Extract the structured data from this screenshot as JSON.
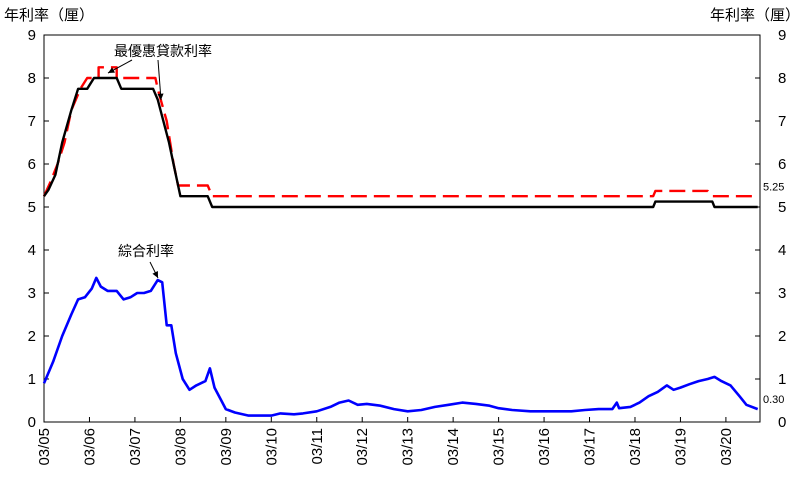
{
  "chart_data": {
    "type": "line",
    "y_axis_left_title": "年利率（厘）",
    "y_axis_right_title": "年利率（厘）",
    "ylim": [
      0,
      9
    ],
    "y_ticks": [
      "0",
      "1",
      "2",
      "3",
      "4",
      "5",
      "6",
      "7",
      "8",
      "9"
    ],
    "x_ticks": [
      "03/05",
      "03/06",
      "03/07",
      "03/08",
      "03/09",
      "03/10",
      "03/11",
      "03/12",
      "03/13",
      "03/14",
      "03/15",
      "03/16",
      "03/17",
      "03/18",
      "03/19",
      "03/20"
    ],
    "annotations": [
      {
        "text": "最優惠貸款利率",
        "series": "black"
      },
      {
        "text": "綜合利率",
        "series": "blue"
      }
    ],
    "end_labels": [
      {
        "text": "5.25",
        "series": "red"
      },
      {
        "text": "0.30",
        "series": "blue"
      }
    ],
    "series": [
      {
        "key": "red",
        "color": "#ff0000",
        "dash": true,
        "points": [
          [
            2005.0,
            5.25
          ],
          [
            2005.15,
            5.6
          ],
          [
            2005.3,
            6.0
          ],
          [
            2005.45,
            6.5
          ],
          [
            2005.6,
            7.25
          ],
          [
            2005.8,
            7.75
          ],
          [
            2005.95,
            8.0
          ],
          [
            2006.2,
            8.0
          ],
          [
            2006.2,
            8.25
          ],
          [
            2006.6,
            8.25
          ],
          [
            2006.6,
            8.0
          ],
          [
            2007.45,
            8.0
          ],
          [
            2007.5,
            7.75
          ],
          [
            2007.7,
            7.0
          ],
          [
            2007.85,
            6.0
          ],
          [
            2007.95,
            5.5
          ],
          [
            2008.6,
            5.5
          ],
          [
            2008.7,
            5.25
          ],
          [
            2018.4,
            5.25
          ],
          [
            2018.45,
            5.375
          ],
          [
            2019.6,
            5.375
          ],
          [
            2019.7,
            5.25
          ],
          [
            2020.7,
            5.25
          ]
        ]
      },
      {
        "key": "black",
        "color": "#000000",
        "dash": false,
        "points": [
          [
            2005.0,
            5.25
          ],
          [
            2005.1,
            5.4
          ],
          [
            2005.25,
            5.75
          ],
          [
            2005.4,
            6.5
          ],
          [
            2005.6,
            7.25
          ],
          [
            2005.75,
            7.75
          ],
          [
            2005.95,
            7.75
          ],
          [
            2006.1,
            8.0
          ],
          [
            2006.6,
            8.0
          ],
          [
            2006.7,
            7.75
          ],
          [
            2007.4,
            7.75
          ],
          [
            2007.5,
            7.5
          ],
          [
            2007.75,
            6.5
          ],
          [
            2007.9,
            5.75
          ],
          [
            2008.0,
            5.25
          ],
          [
            2008.6,
            5.25
          ],
          [
            2008.7,
            5.0
          ],
          [
            2018.4,
            5.0
          ],
          [
            2018.45,
            5.125
          ],
          [
            2019.7,
            5.125
          ],
          [
            2019.75,
            5.0
          ],
          [
            2020.7,
            5.0
          ]
        ]
      },
      {
        "key": "blue",
        "color": "#0000ff",
        "dash": false,
        "points": [
          [
            2005.0,
            0.9
          ],
          [
            2005.2,
            1.4
          ],
          [
            2005.4,
            2.0
          ],
          [
            2005.6,
            2.5
          ],
          [
            2005.75,
            2.85
          ],
          [
            2005.9,
            2.9
          ],
          [
            2006.05,
            3.1
          ],
          [
            2006.15,
            3.35
          ],
          [
            2006.25,
            3.15
          ],
          [
            2006.4,
            3.05
          ],
          [
            2006.6,
            3.05
          ],
          [
            2006.75,
            2.85
          ],
          [
            2006.9,
            2.9
          ],
          [
            2007.05,
            3.0
          ],
          [
            2007.2,
            3.0
          ],
          [
            2007.35,
            3.05
          ],
          [
            2007.5,
            3.3
          ],
          [
            2007.6,
            3.25
          ],
          [
            2007.7,
            2.25
          ],
          [
            2007.8,
            2.25
          ],
          [
            2007.9,
            1.6
          ],
          [
            2008.05,
            1.0
          ],
          [
            2008.2,
            0.75
          ],
          [
            2008.35,
            0.85
          ],
          [
            2008.55,
            0.95
          ],
          [
            2008.65,
            1.25
          ],
          [
            2008.75,
            0.8
          ],
          [
            2008.9,
            0.5
          ],
          [
            2009.0,
            0.3
          ],
          [
            2009.2,
            0.22
          ],
          [
            2009.5,
            0.15
          ],
          [
            2010.0,
            0.15
          ],
          [
            2010.2,
            0.2
          ],
          [
            2010.5,
            0.18
          ],
          [
            2010.7,
            0.2
          ],
          [
            2011.0,
            0.25
          ],
          [
            2011.3,
            0.35
          ],
          [
            2011.5,
            0.45
          ],
          [
            2011.7,
            0.5
          ],
          [
            2011.9,
            0.4
          ],
          [
            2012.1,
            0.42
          ],
          [
            2012.4,
            0.38
          ],
          [
            2012.7,
            0.3
          ],
          [
            2013.0,
            0.25
          ],
          [
            2013.3,
            0.28
          ],
          [
            2013.6,
            0.35
          ],
          [
            2013.9,
            0.4
          ],
          [
            2014.2,
            0.45
          ],
          [
            2014.5,
            0.42
          ],
          [
            2014.8,
            0.38
          ],
          [
            2015.0,
            0.32
          ],
          [
            2015.3,
            0.28
          ],
          [
            2015.7,
            0.25
          ],
          [
            2016.1,
            0.25
          ],
          [
            2016.6,
            0.25
          ],
          [
            2016.9,
            0.28
          ],
          [
            2017.2,
            0.3
          ],
          [
            2017.5,
            0.3
          ],
          [
            2017.6,
            0.45
          ],
          [
            2017.65,
            0.32
          ],
          [
            2017.9,
            0.35
          ],
          [
            2018.1,
            0.45
          ],
          [
            2018.3,
            0.6
          ],
          [
            2018.5,
            0.7
          ],
          [
            2018.7,
            0.85
          ],
          [
            2018.85,
            0.75
          ],
          [
            2019.0,
            0.8
          ],
          [
            2019.2,
            0.88
          ],
          [
            2019.4,
            0.95
          ],
          [
            2019.6,
            1.0
          ],
          [
            2019.75,
            1.05
          ],
          [
            2019.9,
            0.95
          ],
          [
            2020.1,
            0.85
          ],
          [
            2020.3,
            0.6
          ],
          [
            2020.45,
            0.4
          ],
          [
            2020.7,
            0.3
          ]
        ]
      }
    ]
  }
}
